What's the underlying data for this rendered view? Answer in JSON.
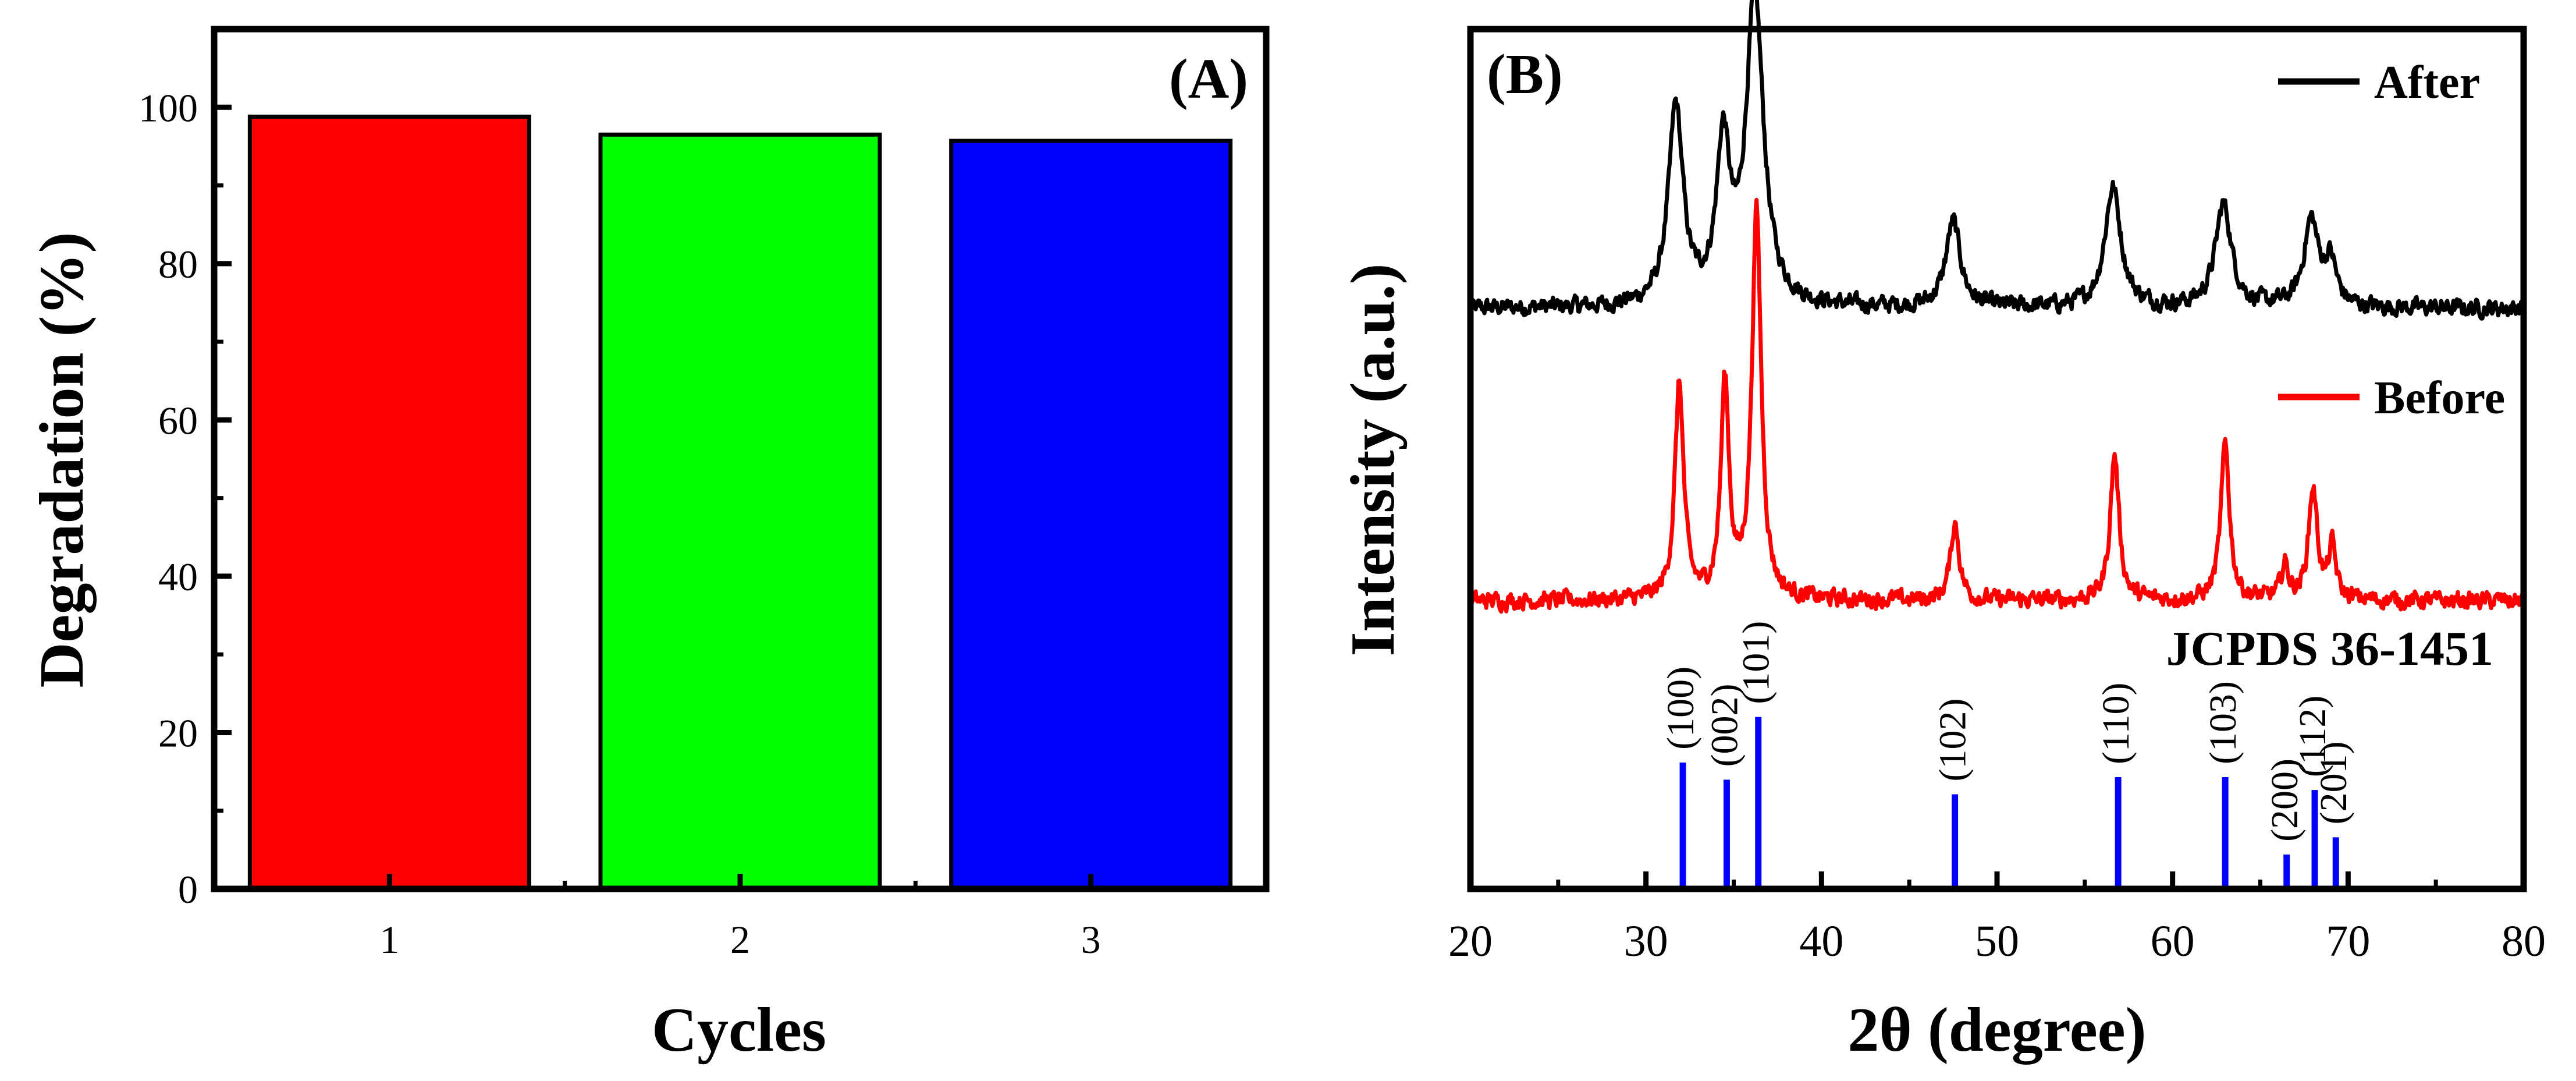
{
  "chart_data": [
    {
      "panel": "(A)",
      "type": "bar",
      "title": "",
      "xlabel": "Cycles",
      "ylabel": "Degradation (%)",
      "categories": [
        "1",
        "2",
        "3"
      ],
      "values": [
        98.8,
        96.5,
        95.7
      ],
      "colors": [
        "#ff0000",
        "#00ff00",
        "#0000ff"
      ],
      "ylim": [
        0,
        110
      ],
      "yticks": [
        0,
        20,
        40,
        60,
        80,
        100
      ],
      "ytick_labels": [
        "0",
        "20",
        "40",
        "60",
        "80",
        "100"
      ],
      "xtick_labels": [
        "1",
        "2",
        "3"
      ],
      "grid": false
    },
    {
      "panel": "(B)",
      "type": "line",
      "title": "",
      "xlabel": "2θ (degree)",
      "ylabel": "Intensity (a.u.)",
      "xlim": [
        20,
        80
      ],
      "xticks": [
        20,
        30,
        40,
        50,
        60,
        70,
        80
      ],
      "xtick_labels": [
        "20",
        "30",
        "40",
        "50",
        "60",
        "70",
        "80"
      ],
      "ylim": [
        0,
        100
      ],
      "legend_position": "top-right",
      "reference_label": "JCPDS 36-1451",
      "series": [
        {
          "name": "After",
          "color": "#000000",
          "baseline": 67.5,
          "peaks": [
            {
              "x": 31.7,
              "h": 23,
              "w": 0.5
            },
            {
              "x": 34.4,
              "h": 18,
              "w": 0.45
            },
            {
              "x": 36.2,
              "h": 36,
              "w": 0.6
            },
            {
              "x": 47.5,
              "h": 10,
              "w": 0.5
            },
            {
              "x": 56.6,
              "h": 14,
              "w": 0.55
            },
            {
              "x": 62.9,
              "h": 12,
              "w": 0.55
            },
            {
              "x": 67.9,
              "h": 10,
              "w": 0.5
            },
            {
              "x": 69.0,
              "h": 5,
              "w": 0.4
            }
          ]
        },
        {
          "name": "Before",
          "color": "#ff0000",
          "baseline": 33.5,
          "peaks": [
            {
              "x": 31.9,
              "h": 25,
              "w": 0.3
            },
            {
              "x": 34.5,
              "h": 25,
              "w": 0.28
            },
            {
              "x": 36.3,
              "h": 45,
              "w": 0.32
            },
            {
              "x": 47.6,
              "h": 9,
              "w": 0.3
            },
            {
              "x": 56.7,
              "h": 17,
              "w": 0.3
            },
            {
              "x": 63.0,
              "h": 18,
              "w": 0.3
            },
            {
              "x": 66.4,
              "h": 4,
              "w": 0.25
            },
            {
              "x": 68.0,
              "h": 13,
              "w": 0.3
            },
            {
              "x": 69.1,
              "h": 6,
              "w": 0.25
            }
          ]
        }
      ],
      "reference_lines": [
        {
          "x": 32.1,
          "h": 14.7,
          "label": "(100)"
        },
        {
          "x": 34.6,
          "h": 12.7,
          "label": "(002)"
        },
        {
          "x": 36.4,
          "h": 20.0,
          "label": "(101)"
        },
        {
          "x": 47.6,
          "h": 11.0,
          "label": "(102)"
        },
        {
          "x": 56.9,
          "h": 13.0,
          "label": "(110)"
        },
        {
          "x": 63.0,
          "h": 13.0,
          "label": "(103)"
        },
        {
          "x": 66.5,
          "h": 4.0,
          "label": "(200)"
        },
        {
          "x": 68.1,
          "h": 11.5,
          "label": "(112)"
        },
        {
          "x": 69.3,
          "h": 6.0,
          "label": "(201)"
        }
      ],
      "reference_color": "#0000ff"
    }
  ]
}
